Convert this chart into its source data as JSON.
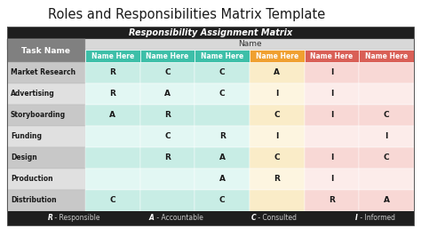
{
  "title": "Roles and Responsibilities Matrix Template",
  "subtitle": "Responsibility Assignment Matrix",
  "task_label": "Task Name",
  "name_label": "Name",
  "col_headers": [
    "Name Here",
    "Name Here",
    "Name Here",
    "Name Here",
    "Name Here",
    "Name Here"
  ],
  "col_colors": [
    "#3dbfa8",
    "#3dbfa8",
    "#3dbfa8",
    "#f0a030",
    "#d95f56",
    "#d95f56"
  ],
  "rows": [
    {
      "task": "Market Research",
      "values": [
        "R",
        "C",
        "C",
        "A",
        "I",
        ""
      ]
    },
    {
      "task": "Advertising",
      "values": [
        "R",
        "A",
        "C",
        "I",
        "I",
        ""
      ]
    },
    {
      "task": "Storyboarding",
      "values": [
        "A",
        "R",
        "",
        "C",
        "I",
        "C"
      ]
    },
    {
      "task": "Funding",
      "values": [
        "",
        "C",
        "R",
        "I",
        "",
        "I"
      ]
    },
    {
      "task": "Design",
      "values": [
        "",
        "R",
        "A",
        "C",
        "I",
        "C"
      ]
    },
    {
      "task": "Production",
      "values": [
        "",
        "",
        "A",
        "R",
        "I",
        ""
      ]
    },
    {
      "task": "Distribution",
      "values": [
        "C",
        "",
        "C",
        "",
        "R",
        "A"
      ]
    }
  ],
  "col_bg_even": [
    "#c8ede5",
    "#c8ede5",
    "#c8ede5",
    "#faecc8",
    "#f8d8d5",
    "#f8d8d5"
  ],
  "col_bg_odd": [
    "#e2f7f3",
    "#e2f7f3",
    "#e2f7f3",
    "#fdf5e0",
    "#fcecea",
    "#fcecea"
  ],
  "task_bg_even": "#c8c8c8",
  "task_bg_odd": "#e0e0e0",
  "header_bg": "#1e1e1e",
  "name_row_bg": "#d8d8d8",
  "task_header_bg": "#808080",
  "footer_bg": "#1e1e1e",
  "legend": [
    {
      "letter": "R",
      "label": " - Responsible"
    },
    {
      "letter": "A",
      "label": " - Accountable"
    },
    {
      "letter": "C",
      "label": " - Consulted"
    },
    {
      "letter": "I",
      "label": " - Informed"
    }
  ],
  "fig_width": 4.74,
  "fig_height": 2.66,
  "dpi": 100
}
